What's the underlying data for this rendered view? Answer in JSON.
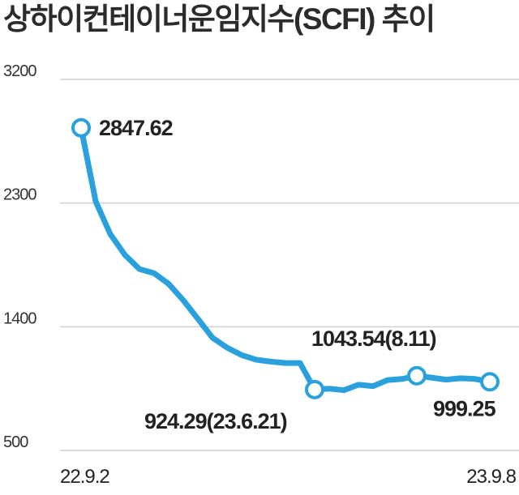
{
  "chart_data": {
    "type": "line",
    "title": "상하이컨테이너운임지수(SCFI) 추이",
    "xlabel": "",
    "ylabel": "",
    "ylim": [
      500,
      3200
    ],
    "yticks": [
      500,
      1400,
      2300,
      3200
    ],
    "x_tick_labels": [
      "22.9.2",
      "23.9.8"
    ],
    "grid": "horizontal",
    "line_color": "#2aa1dc",
    "series": [
      {
        "values": [
          2847.62,
          2312,
          2074,
          1923,
          1820,
          1790,
          1712,
          1593,
          1458,
          1320,
          1248,
          1194,
          1160,
          1146,
          1136,
          1136,
          943,
          950,
          938,
          978,
          968,
          1012,
          1020,
          1043.54,
          1030,
          1015,
          1025,
          1020,
          999.25
        ]
      }
    ],
    "annotations": [
      {
        "label": "2847.62",
        "index": 0
      },
      {
        "label": "924.29(23.6.21)",
        "index": 16
      },
      {
        "label": "1043.54(8.11)",
        "index": 23
      },
      {
        "label": "999.25",
        "index": 28
      }
    ]
  }
}
